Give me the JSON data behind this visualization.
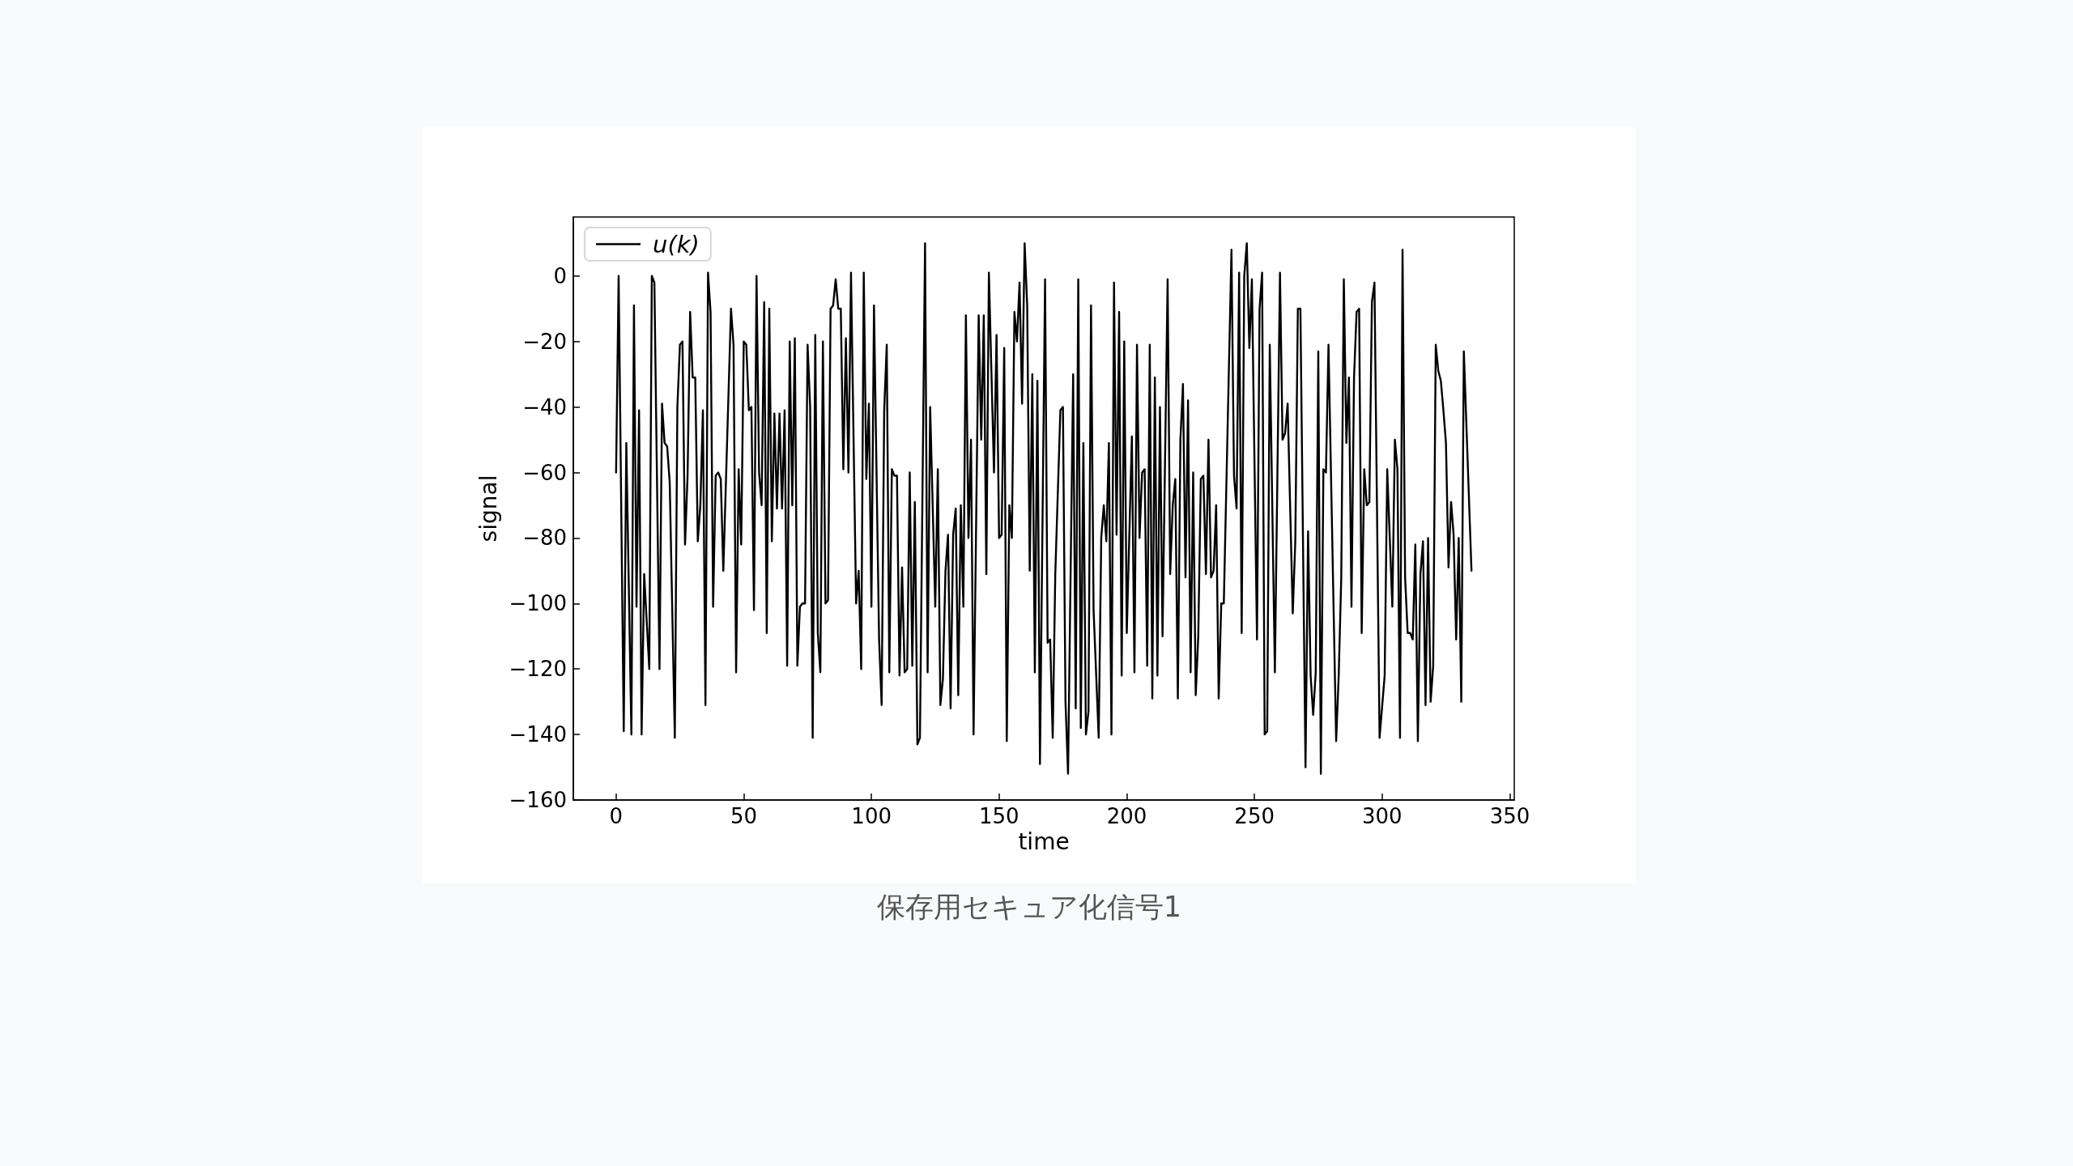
{
  "chart_data": {
    "type": "line",
    "xlabel": "time",
    "ylabel": "signal",
    "annotations": [
      "保存用セキュア化信号1"
    ],
    "xlim": [
      -16.75,
      351.75
    ],
    "ylim": [
      -160,
      18
    ],
    "xticks": [
      0,
      50,
      100,
      150,
      200,
      250,
      300,
      350
    ],
    "yticks": [
      {
        "value": -160,
        "label": "−160"
      },
      {
        "value": -140,
        "label": "−140"
      },
      {
        "value": -120,
        "label": "−120"
      },
      {
        "value": -100,
        "label": "−100"
      },
      {
        "value": -80,
        "label": "−80"
      },
      {
        "value": -60,
        "label": "−60"
      },
      {
        "value": -40,
        "label": "−40"
      },
      {
        "value": -20,
        "label": "−20"
      },
      0
    ],
    "legend": "top left",
    "marker": "none",
    "line_style": "solid",
    "series": [
      {
        "name": "u(k)",
        "color": "#000000",
        "x": [
          0,
          1,
          3,
          4,
          6,
          7,
          8,
          9,
          10,
          11,
          13,
          14,
          15,
          17,
          18,
          19,
          20,
          21,
          23,
          24,
          25,
          26,
          27,
          28,
          29,
          30,
          31,
          32,
          33,
          34,
          35,
          36,
          37,
          38,
          39,
          40,
          41,
          42,
          45,
          46,
          47,
          48,
          49,
          50,
          51,
          52,
          53,
          54,
          55,
          56,
          57,
          58,
          59,
          60,
          61,
          62,
          63,
          64,
          65,
          66,
          67,
          68,
          69,
          70,
          71,
          72,
          73,
          74,
          75,
          76,
          77,
          78,
          79,
          80,
          81,
          82,
          83,
          84,
          85,
          86,
          87,
          88,
          89,
          90,
          91,
          92,
          94,
          95,
          96,
          97,
          98,
          99,
          100,
          101,
          103,
          104,
          105,
          106,
          107,
          108,
          109,
          110,
          111,
          112,
          113,
          114,
          115,
          116,
          117,
          118,
          119,
          121,
          122,
          123,
          125,
          126,
          127,
          128,
          129,
          130,
          131,
          132,
          133,
          134,
          135,
          136,
          137,
          138,
          139,
          140,
          142,
          143,
          144,
          145,
          146,
          148,
          149,
          150,
          151,
          152,
          153,
          154,
          155,
          156,
          157,
          158,
          159,
          160,
          161,
          162,
          163,
          164,
          165,
          166,
          168,
          169,
          170,
          171,
          172,
          174,
          175,
          176,
          177,
          179,
          180,
          181,
          182,
          183,
          184,
          185,
          186,
          187,
          189,
          190,
          191,
          192,
          193,
          194,
          195,
          196,
          197,
          198,
          199,
          200,
          202,
          203,
          204,
          205,
          206,
          207,
          208,
          209,
          210,
          211,
          212,
          213,
          214,
          216,
          217,
          218,
          219,
          220,
          221,
          222,
          223,
          224,
          225,
          226,
          227,
          228,
          229,
          230,
          231,
          232,
          233,
          234,
          235,
          236,
          237,
          238,
          241,
          242,
          243,
          244,
          245,
          246,
          247,
          248,
          249,
          251,
          252,
          253,
          254,
          255,
          256,
          258,
          260,
          261,
          262,
          263,
          265,
          266,
          267,
          268,
          270,
          271,
          272,
          273,
          274,
          275,
          276,
          277,
          278,
          279,
          282,
          283,
          284,
          285,
          286,
          287,
          288,
          289,
          290,
          291,
          292,
          293,
          294,
          295,
          296,
          297,
          299,
          301,
          302,
          304,
          305,
          306,
          307,
          308,
          309,
          310,
          311,
          312,
          313,
          314,
          315,
          316,
          317,
          318,
          319,
          320,
          321,
          322,
          323,
          324,
          325,
          326,
          327,
          328,
          329,
          330,
          331,
          332,
          335
        ],
        "values": [
          -60,
          0,
          -139,
          -51,
          -140,
          -9,
          -101,
          -41,
          -140,
          -91,
          -120,
          0,
          -2,
          -120,
          -39,
          -51,
          -52,
          -63,
          -141,
          -40,
          -21,
          -20,
          -82,
          -61,
          -11,
          -31,
          -31,
          -81,
          -70,
          -41,
          -131,
          1,
          -11,
          -101,
          -61,
          -60,
          -62,
          -90,
          -10,
          -21,
          -121,
          -59,
          -82,
          -20,
          -21,
          -41,
          -40,
          -102,
          0,
          -60,
          -70,
          -8,
          -109,
          -10,
          -81,
          -42,
          -71,
          -42,
          -71,
          -41,
          -119,
          -20,
          -70,
          -19,
          -119,
          -101,
          -100,
          -100,
          -21,
          -40,
          -141,
          -18,
          -109,
          -121,
          -20,
          -100,
          -99,
          -10,
          -9,
          -1,
          -10,
          -10,
          -59,
          -19,
          -60,
          1,
          -100,
          -90,
          -120,
          1,
          -62,
          -39,
          -101,
          -9,
          -111,
          -131,
          -41,
          -21,
          -121,
          -59,
          -61,
          -61,
          -122,
          -89,
          -121,
          -120,
          -60,
          -119,
          -69,
          -143,
          -141,
          10,
          -121,
          -40,
          -101,
          -59,
          -131,
          -123,
          -90,
          -79,
          -132,
          -79,
          -71,
          -128,
          -70,
          -101,
          -12,
          -80,
          -50,
          -140,
          -12,
          -50,
          -12,
          -91,
          1,
          -60,
          -18,
          -80,
          -79,
          -22,
          -142,
          -70,
          -80,
          -11,
          -20,
          -2,
          -39,
          10,
          -9,
          -90,
          -30,
          -121,
          -32,
          -149,
          -1,
          -112,
          -111,
          -141,
          -91,
          -41,
          -40,
          -130,
          -152,
          -30,
          -132,
          -1,
          -138,
          -51,
          -140,
          -133,
          -9,
          -102,
          -141,
          -80,
          -70,
          -81,
          -51,
          -140,
          -2,
          -79,
          -11,
          -122,
          -20,
          -109,
          -49,
          -121,
          -21,
          -80,
          -60,
          -59,
          -119,
          -21,
          -129,
          -31,
          -122,
          -40,
          -110,
          -1,
          -91,
          -70,
          -62,
          -129,
          -50,
          -33,
          -92,
          -38,
          -121,
          -60,
          -128,
          -110,
          -62,
          -61,
          -91,
          -50,
          -92,
          -90,
          -70,
          -129,
          -100,
          -100,
          8,
          -61,
          -71,
          1,
          -109,
          0,
          10,
          -22,
          -1,
          -111,
          -10,
          1,
          -140,
          -139,
          -21,
          -121,
          1,
          -50,
          -48,
          -39,
          -103,
          -81,
          -10,
          -10,
          -150,
          -78,
          -122,
          -134,
          -121,
          -23,
          -152,
          -59,
          -60,
          -21,
          -142,
          -122,
          -92,
          -1,
          -51,
          -31,
          -101,
          -31,
          -11,
          -10,
          -109,
          -59,
          -70,
          -69,
          -8,
          -2,
          -141,
          -122,
          -59,
          -101,
          -50,
          -59,
          -141,
          8,
          -92,
          -109,
          -109,
          -111,
          -82,
          -142,
          -91,
          -81,
          -131,
          -80,
          -130,
          -119,
          -21,
          -29,
          -32,
          -41,
          -51,
          -89,
          -69,
          -79,
          -111,
          -80,
          -130,
          -23,
          -90
        ]
      }
    ]
  }
}
